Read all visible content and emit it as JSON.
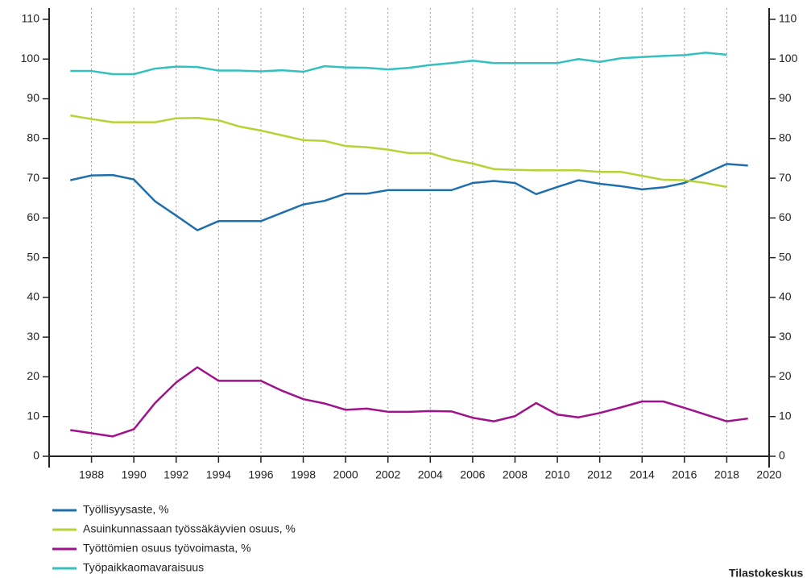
{
  "chart_data": {
    "type": "line",
    "x": [
      1987,
      1988,
      1989,
      1990,
      1991,
      1992,
      1993,
      1994,
      1995,
      1996,
      1997,
      1998,
      1999,
      2000,
      2001,
      2002,
      2003,
      2004,
      2005,
      2006,
      2007,
      2008,
      2009,
      2010,
      2011,
      2012,
      2013,
      2014,
      2015,
      2016,
      2017,
      2018,
      2019
    ],
    "series": [
      {
        "name": "Työllisyysaste, %",
        "color": "#1f6fae",
        "values": [
          69.5,
          70.7,
          70.8,
          69.7,
          64.2,
          60.6,
          56.9,
          59.2,
          59.2,
          59.2,
          61.3,
          63.4,
          64.3,
          66.1,
          66.1,
          67,
          67,
          67,
          67,
          68.8,
          69.3,
          68.8,
          66,
          67.8,
          69.5,
          68.6,
          68,
          67.2,
          67.7,
          68.8,
          71.2,
          73.6,
          73.2
        ]
      },
      {
        "name": "Asuinkunnassaan työssäkäyvien osuus, %",
        "color": "#b5d334",
        "values": [
          85.8,
          84.9,
          84.1,
          84.1,
          84.1,
          85.1,
          85.2,
          84.6,
          83,
          82,
          80.8,
          79.6,
          79.4,
          78.1,
          77.8,
          77.2,
          76.3,
          76.3,
          74.7,
          73.7,
          72.3,
          72.1,
          72,
          72,
          72,
          71.6,
          71.6,
          70.6,
          69.6,
          69.5,
          68.8,
          67.8,
          null
        ]
      },
      {
        "name": "Työttömien osuus työvoimasta, %",
        "color": "#a0118c",
        "values": [
          6.6,
          5.8,
          5,
          6.8,
          13.4,
          18.6,
          22.4,
          19,
          19,
          19,
          16.5,
          14.4,
          13.3,
          11.7,
          12,
          11.2,
          11.2,
          11.4,
          11.3,
          9.7,
          8.8,
          10.1,
          13.4,
          10.5,
          9.8,
          10.9,
          12.3,
          13.8,
          13.8,
          12.2,
          10.5,
          8.8,
          9.5
        ]
      },
      {
        "name": "Työpaikkaomavaraisuus",
        "color": "#35c0c0",
        "values": [
          97,
          97,
          96.2,
          96.2,
          97.6,
          98.1,
          98,
          97.1,
          97.1,
          96.9,
          97.2,
          96.8,
          98.2,
          97.9,
          97.8,
          97.4,
          97.8,
          98.5,
          99,
          99.6,
          99,
          99,
          99,
          99,
          100,
          99.3,
          100.2,
          100.5,
          100.8,
          101,
          101.6,
          101.1,
          null
        ]
      }
    ],
    "xlim": [
      1986,
      2020
    ],
    "xticks": [
      1988,
      1990,
      1992,
      1994,
      1996,
      1998,
      2000,
      2002,
      2004,
      2006,
      2008,
      2010,
      2012,
      2014,
      2016,
      2018,
      2020
    ],
    "ylim": [
      0,
      110
    ],
    "yticks": [
      0,
      10,
      20,
      30,
      40,
      50,
      60,
      70,
      80,
      90,
      100,
      110
    ],
    "y2lim": [
      0,
      110
    ],
    "y2ticks": [
      0,
      10,
      20,
      30,
      40,
      50,
      60,
      70,
      80,
      90,
      100,
      110
    ],
    "grid": "x",
    "source": "Tilastokeskus"
  }
}
